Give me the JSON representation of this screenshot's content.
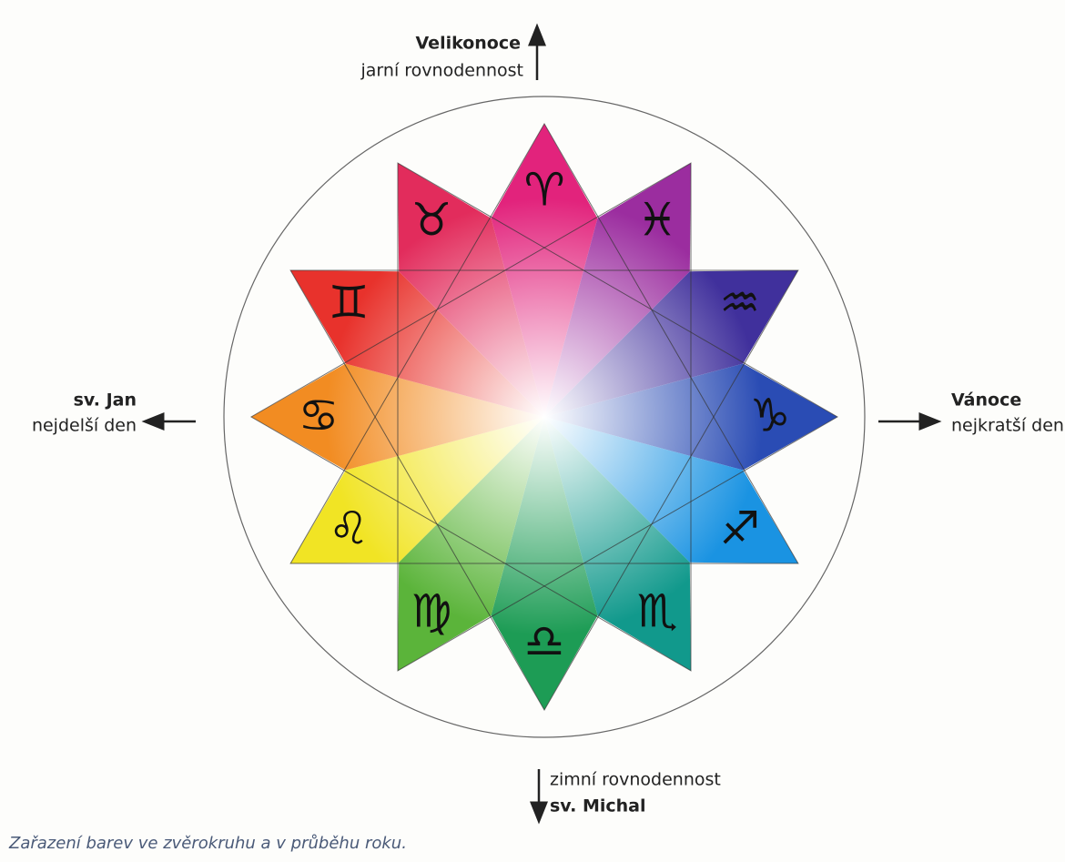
{
  "labels": {
    "top_bold": "Velikonoce",
    "top": "jarní rovnodennost",
    "left_bold": "sv. Jan",
    "left": "nejdelší den",
    "right_bold": "Vánoce",
    "right": "nejkratší den",
    "bottom": "zimní rovnodennost",
    "bottom_bold": "sv. Michal",
    "caption": "Zařazení barev ve zvěrokruhu a v průběhu roku."
  },
  "nodes": [
    {
      "symbol": "♈",
      "color": "#e2237c"
    },
    {
      "symbol": "♓",
      "color": "#9b2d9f"
    },
    {
      "symbol": "♒",
      "color": "#40309c"
    },
    {
      "symbol": "♑",
      "color": "#2a4cb4"
    },
    {
      "symbol": "♐",
      "color": "#1a93e2"
    },
    {
      "symbol": "♏",
      "color": "#11998c"
    },
    {
      "symbol": "♎",
      "color": "#1d9c55"
    },
    {
      "symbol": "♍",
      "color": "#5bb43a"
    },
    {
      "symbol": "♌",
      "color": "#f1e424"
    },
    {
      "symbol": "♋",
      "color": "#f28c22"
    },
    {
      "symbol": "♊",
      "color": "#e8322c"
    },
    {
      "symbol": "♉",
      "color": "#e22c5c"
    }
  ]
}
